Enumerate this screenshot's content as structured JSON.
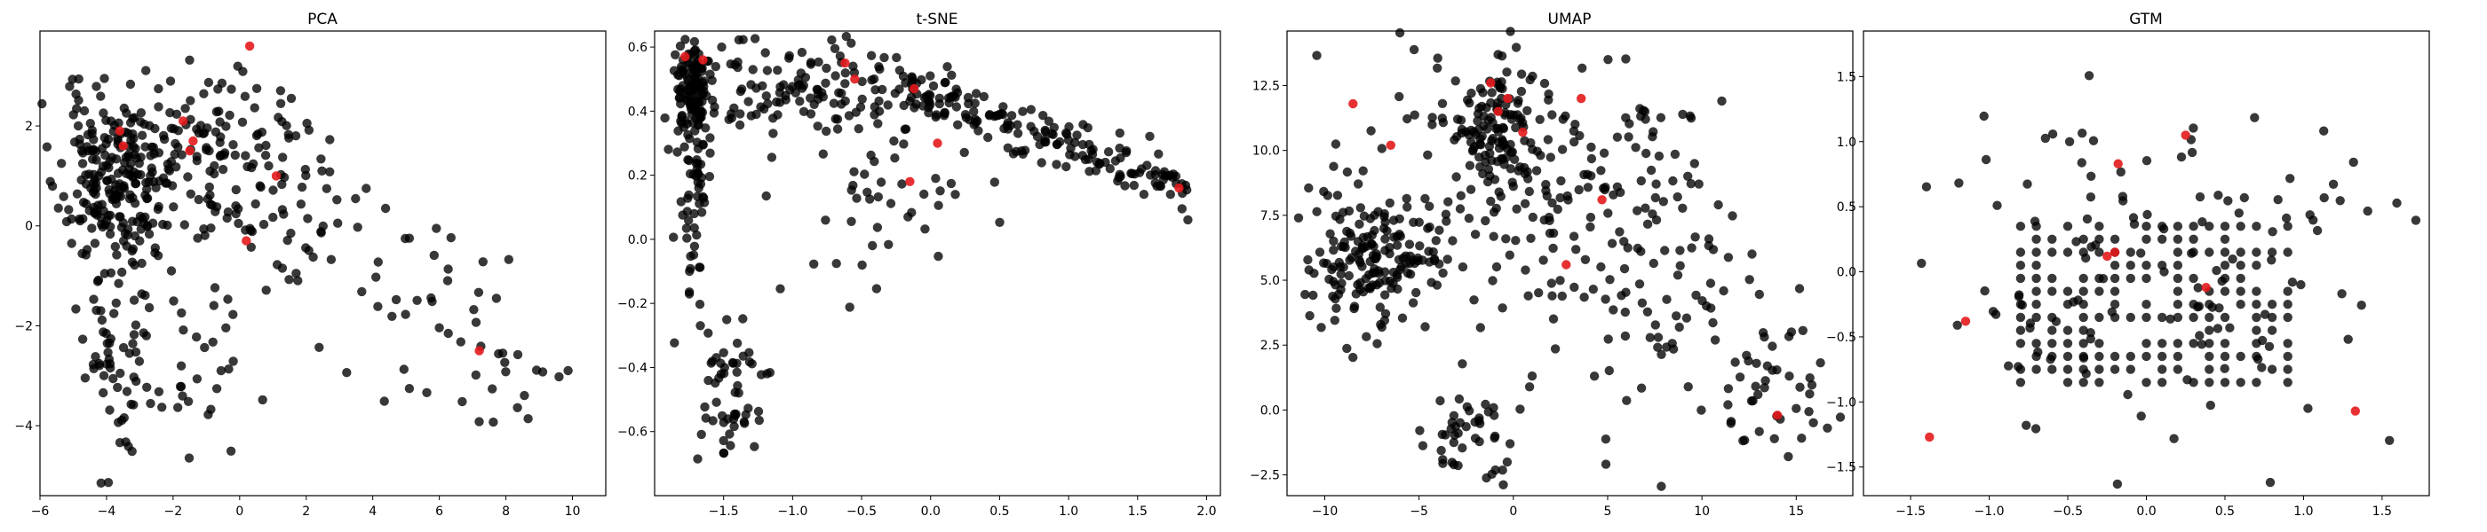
{
  "figure": {
    "background": "#ffffff"
  },
  "colors": {
    "main_points": "#000000",
    "highlight_points": "#e41a1c"
  },
  "chart_data": [
    {
      "type": "scatter",
      "title": "PCA",
      "xlim": [
        -6,
        11
      ],
      "ylim": [
        -5.4,
        3.9
      ],
      "xticks": [
        -6,
        -4,
        -2,
        0,
        2,
        4,
        6,
        8,
        10
      ],
      "yticks": [
        -4,
        -2,
        0,
        2
      ],
      "series": [
        {
          "role": "highlight",
          "points": [
            [
              0.3,
              3.6
            ],
            [
              -3.6,
              1.9
            ],
            [
              -3.5,
              1.6
            ],
            [
              -1.7,
              2.1
            ],
            [
              -1.4,
              1.7
            ],
            [
              -1.5,
              1.5
            ],
            [
              1.1,
              1.0
            ],
            [
              0.2,
              -0.3
            ],
            [
              7.2,
              -2.5
            ]
          ]
        }
      ],
      "background": {
        "seed": 11,
        "clusters": [
          {
            "n": 230,
            "cx": -3.8,
            "cy": 0.9,
            "sx": 0.8,
            "sy": 0.9
          },
          {
            "n": 60,
            "cx": -3.6,
            "cy": -2.7,
            "sx": 0.5,
            "sy": 1.2
          },
          {
            "n": 120,
            "cx": -0.6,
            "cy": 1.5,
            "sx": 1.3,
            "sy": 0.9
          },
          {
            "n": 45,
            "cx": 2.0,
            "cy": 0.2,
            "sx": 1.5,
            "sy": 1.2
          },
          {
            "n": 35,
            "cx": -1.4,
            "cy": -2.2,
            "sx": 1.1,
            "sy": 1.3
          },
          {
            "n": 25,
            "cx": 5.8,
            "cy": -1.4,
            "sx": 1.2,
            "sy": 1.0
          },
          {
            "n": 20,
            "cx": 8.0,
            "cy": -2.9,
            "sx": 1.4,
            "sy": 1.2
          }
        ]
      }
    },
    {
      "type": "scatter",
      "title": "t-SNE",
      "xlim": [
        -2.0,
        2.1
      ],
      "ylim": [
        -0.8,
        0.65
      ],
      "xticks": [
        -1.5,
        -1.0,
        -0.5,
        0.0,
        0.5,
        1.0,
        1.5,
        2.0
      ],
      "yticks": [
        -0.6,
        -0.4,
        -0.2,
        0.0,
        0.2,
        0.4,
        0.6
      ],
      "series": [
        {
          "role": "highlight",
          "points": [
            [
              -1.78,
              0.57
            ],
            [
              -1.65,
              0.56
            ],
            [
              -0.62,
              0.55
            ],
            [
              -0.55,
              0.5
            ],
            [
              -0.12,
              0.47
            ],
            [
              0.05,
              0.3
            ],
            [
              -0.15,
              0.18
            ],
            [
              1.8,
              0.16
            ]
          ]
        }
      ],
      "background": {
        "seed": 23,
        "clusters": [
          {
            "n": 110,
            "cx": -1.72,
            "cy": 0.46,
            "sx": 0.07,
            "sy": 0.08
          },
          {
            "n": 140,
            "cx": -0.9,
            "cy": 0.46,
            "sx": 0.45,
            "sy": 0.08
          },
          {
            "n": 60,
            "cx": -1.72,
            "cy": 0.1,
            "sx": 0.05,
            "sy": 0.22
          },
          {
            "n": 55,
            "cx": -1.45,
            "cy": -0.5,
            "sx": 0.1,
            "sy": 0.12
          },
          {
            "n": 40,
            "cx": -0.4,
            "cy": 0.12,
            "sx": 0.35,
            "sy": 0.12
          }
        ],
        "lines": [
          {
            "n": 170,
            "x0": -0.2,
            "y0": 0.48,
            "x1": 1.85,
            "y1": 0.16,
            "sx": 0.04,
            "sy": 0.04
          }
        ]
      }
    },
    {
      "type": "scatter",
      "title": "UMAP",
      "xlim": [
        -12,
        18
      ],
      "ylim": [
        -3.3,
        14.6
      ],
      "xticks": [
        -10,
        -5,
        0,
        5,
        10,
        15
      ],
      "yticks": [
        -2.5,
        0.0,
        2.5,
        5.0,
        7.5,
        10.0,
        12.5
      ],
      "series": [
        {
          "role": "highlight",
          "points": [
            [
              -8.5,
              11.8
            ],
            [
              -1.2,
              12.6
            ],
            [
              -0.8,
              11.5
            ],
            [
              -0.3,
              12.0
            ],
            [
              3.6,
              12.0
            ],
            [
              -6.5,
              10.2
            ],
            [
              0.5,
              10.7
            ],
            [
              4.7,
              8.1
            ],
            [
              2.8,
              5.6
            ],
            [
              14.0,
              -0.2
            ]
          ]
        }
      ],
      "background": {
        "seed": 37,
        "clusters": [
          {
            "n": 170,
            "cx": -7.3,
            "cy": 5.9,
            "sx": 1.8,
            "sy": 1.4
          },
          {
            "n": 120,
            "cx": -0.8,
            "cy": 10.8,
            "sx": 1.2,
            "sy": 1.3
          },
          {
            "n": 120,
            "cx": 4.5,
            "cy": 9.0,
            "sx": 3.5,
            "sy": 2.2
          },
          {
            "n": 70,
            "cx": 7.0,
            "cy": 3.5,
            "sx": 3.5,
            "sy": 2.2
          },
          {
            "n": 45,
            "cx": -2.0,
            "cy": -1.0,
            "sx": 1.3,
            "sy": 1.1
          },
          {
            "n": 50,
            "cx": -4.0,
            "cy": 8.5,
            "sx": 3.0,
            "sy": 2.5
          },
          {
            "n": 40,
            "cx": 13.5,
            "cy": 0.5,
            "sx": 1.8,
            "sy": 1.4
          }
        ]
      }
    },
    {
      "type": "scatter",
      "title": "GTM",
      "xlim": [
        -1.8,
        1.8
      ],
      "ylim": [
        -1.72,
        1.85
      ],
      "xticks": [
        -1.5,
        -1.0,
        -0.5,
        0.0,
        0.5,
        1.0,
        1.5
      ],
      "yticks": [
        -1.5,
        -1.0,
        -0.5,
        0.0,
        0.5,
        1.0,
        1.5
      ],
      "series": [
        {
          "role": "highlight",
          "points": [
            [
              -0.18,
              0.83
            ],
            [
              0.25,
              1.05
            ],
            [
              -0.2,
              0.15
            ],
            [
              -0.25,
              0.12
            ],
            [
              0.38,
              -0.12
            ],
            [
              -1.15,
              -0.38
            ],
            [
              1.33,
              -1.07
            ],
            [
              -1.38,
              -1.27
            ]
          ]
        }
      ],
      "background": {
        "seed": 51,
        "grid": {
          "x0": -0.8,
          "x1": 0.9,
          "y0": -0.85,
          "y1": 0.4,
          "step": 0.1,
          "fill": 0.72
        },
        "clusters": [
          {
            "n": 120,
            "cx": 0.0,
            "cy": 0.05,
            "sx": 0.75,
            "sy": 0.7
          }
        ]
      }
    }
  ]
}
